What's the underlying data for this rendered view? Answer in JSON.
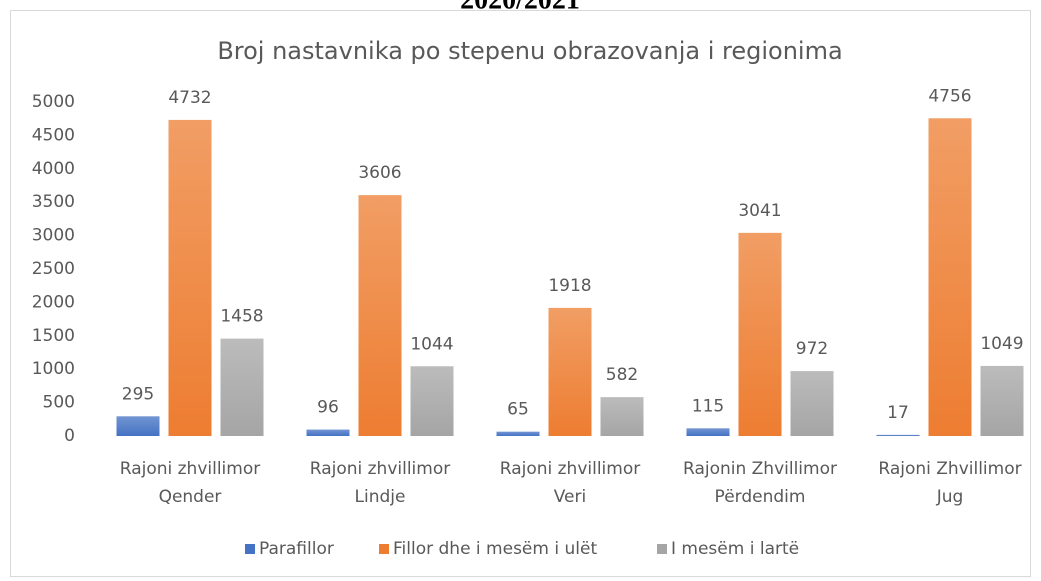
{
  "header": {
    "title": "2020/2021"
  },
  "chart_data": {
    "type": "bar",
    "title": "Broj nastavnika po stepenu obrazovanja i regionima",
    "categories": [
      [
        "Rajoni zhvillimor",
        "Qender"
      ],
      [
        "Rajoni zhvillimor",
        "Lindje"
      ],
      [
        "Rajoni zhvillimor",
        "Veri"
      ],
      [
        "Rajonin Zhvillimor",
        "Përdendim"
      ],
      [
        "Rajoni Zhvillimor",
        "Jug"
      ]
    ],
    "series": [
      {
        "name": "Parafillor",
        "color": "#4472c4",
        "values": [
          295,
          96,
          65,
          115,
          17
        ]
      },
      {
        "name": "Fillor dhe i mesëm i ulët",
        "color": "#ed7d31",
        "values": [
          4732,
          3606,
          1918,
          3041,
          4756
        ]
      },
      {
        "name": "I mesëm i lartë",
        "color": "#a5a5a5",
        "values": [
          1458,
          1044,
          582,
          972,
          1049
        ]
      }
    ],
    "ylim": [
      0,
      5000
    ],
    "yticks": [
      0,
      500,
      1000,
      1500,
      2000,
      2500,
      3000,
      3500,
      4000,
      4500,
      5000
    ],
    "grid": false,
    "legend": "bottom"
  }
}
